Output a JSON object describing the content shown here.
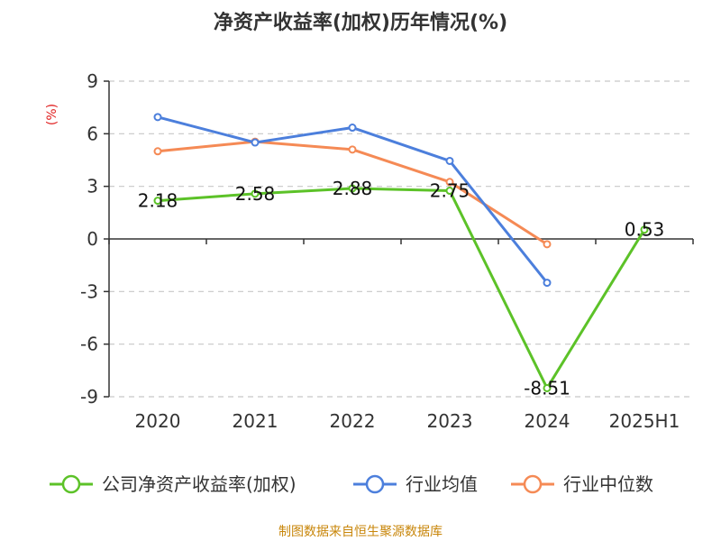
{
  "title": "净资产收益率(加权)历年情况(%)",
  "source": "制图数据来自恒生聚源数据库",
  "chart_data": {
    "type": "line",
    "title": "净资产收益率(加权)历年情况(%)",
    "unit_label": "(%)",
    "categories": [
      "2020",
      "2021",
      "2022",
      "2023",
      "2024",
      "2025H1"
    ],
    "ylim": [
      -9,
      9
    ],
    "yticks": [
      9,
      6,
      3,
      0,
      -3,
      -6,
      -9
    ],
    "grid": true,
    "legend_position": "bottom",
    "series": [
      {
        "name": "公司净资产收益率(加权)",
        "color": "#5cc228",
        "values": [
          2.18,
          2.58,
          2.88,
          2.75,
          -8.51,
          0.53
        ],
        "labels": [
          "2.18",
          "2.58",
          "2.88",
          "2.75",
          "-8.51",
          "0.53"
        ]
      },
      {
        "name": "行业均值",
        "color": "#4c7fdc",
        "values": [
          6.95,
          5.5,
          6.35,
          4.45,
          -2.5,
          null
        ]
      },
      {
        "name": "行业中位数",
        "color": "#f58a55",
        "values": [
          5.0,
          5.55,
          5.1,
          3.25,
          -0.3,
          null
        ]
      }
    ]
  }
}
